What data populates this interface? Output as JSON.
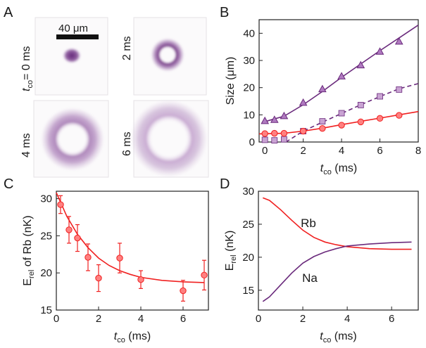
{
  "panel_letters": {
    "A": "A",
    "B": "B",
    "C": "C",
    "D": "D"
  },
  "images": {
    "scalebar_label": "40 μm",
    "label_0": "t",
    "label_0_sub": "co",
    "label_0_rest": "= 0 ms",
    "label_2": "2 ms",
    "label_4": "4 ms",
    "label_6": "6 ms"
  },
  "colors": {
    "red": "#f02020",
    "purple": "#6a2a7c",
    "purple_light": "#b27cbf",
    "red_fill": "#ff8080",
    "purple_fill": "#b07ac0"
  },
  "chart_data": [
    {
      "panel": "B",
      "type": "scatter",
      "xlabel": "t",
      "xlabel_sub": "co",
      "xlabel_unit": " (ms)",
      "ylabel": "Size (μm)",
      "xlim": [
        -0.3,
        8
      ],
      "ylim": [
        0,
        45
      ],
      "xticks": [
        "0",
        "2",
        "4",
        "6",
        "8"
      ],
      "xtick_values": [
        0,
        2,
        4,
        6,
        8
      ],
      "yticks": [
        "0",
        "10",
        "20",
        "30",
        "40"
      ],
      "ytick_values": [
        0,
        10,
        20,
        30,
        40
      ],
      "series": [
        {
          "marker": "triangle",
          "color": "#6a2a7c",
          "fill": "#b07ac0",
          "points": [
            [
              0,
              7.8
            ],
            [
              0.5,
              8.2
            ],
            [
              1,
              9.6
            ],
            [
              2,
              14.5
            ],
            [
              3,
              19.5
            ],
            [
              4,
              24.2
            ],
            [
              5,
              28.3
            ],
            [
              6,
              33.3
            ],
            [
              7,
              37
            ]
          ],
          "fit": [
            [
              0,
              7.5
            ],
            [
              1,
              9.5
            ],
            [
              2,
              13.7
            ],
            [
              3,
              18.6
            ],
            [
              4,
              23.8
            ],
            [
              5,
              28.7
            ],
            [
              6,
              33.6
            ],
            [
              7,
              38.3
            ],
            [
              8,
              43
            ]
          ],
          "dashed": false
        },
        {
          "marker": "square",
          "color": "#6a2a7c",
          "fill": "#c9a3d3",
          "points": [
            [
              0,
              0.8
            ],
            [
              0.5,
              0.6
            ],
            [
              1,
              1
            ],
            [
              2,
              4
            ],
            [
              3,
              7.6
            ],
            [
              4,
              10.6
            ],
            [
              5,
              13.6
            ],
            [
              6,
              16.8
            ],
            [
              7,
              19.3
            ]
          ],
          "fit": [
            [
              1.1,
              0
            ],
            [
              2,
              4
            ],
            [
              3,
              7.3
            ],
            [
              4,
              10.5
            ],
            [
              5,
              13.7
            ],
            [
              6,
              16.7
            ],
            [
              7,
              19.6
            ],
            [
              8,
              21.5
            ]
          ],
          "dashed": true
        },
        {
          "marker": "circle",
          "color": "#f02020",
          "fill": "#ff8080",
          "points": [
            [
              0,
              3.1
            ],
            [
              0.5,
              3.2
            ],
            [
              1,
              3.2
            ],
            [
              2,
              4
            ],
            [
              3,
              5
            ],
            [
              4,
              6.2
            ],
            [
              5,
              7.4
            ],
            [
              6,
              8.7
            ],
            [
              7,
              9.8
            ]
          ],
          "fit": [
            [
              -0.3,
              3
            ],
            [
              1,
              3.2
            ],
            [
              2,
              4
            ],
            [
              3,
              5.1
            ],
            [
              4,
              6.4
            ],
            [
              5,
              7.6
            ],
            [
              6,
              8.8
            ],
            [
              7,
              10
            ],
            [
              8,
              11.2
            ]
          ],
          "dashed": false
        }
      ]
    },
    {
      "panel": "C",
      "type": "scatter",
      "xlabel": "t",
      "xlabel_sub": "co",
      "xlabel_unit": " (ms)",
      "ylabel": "E",
      "ylabel_sub": "rel",
      "ylabel_rest": " of Rb (nK)",
      "xlim": [
        0,
        7.2
      ],
      "ylim": [
        15,
        31
      ],
      "xticks": [
        "0",
        "2",
        "4",
        "6"
      ],
      "xtick_values": [
        0,
        2,
        4,
        6
      ],
      "yticks": [
        "15",
        "20",
        "25",
        "30"
      ],
      "ytick_values": [
        15,
        20,
        25,
        30
      ],
      "series": [
        {
          "marker": "circle",
          "color": "#f02020",
          "fill": "#ff8080",
          "points": [
            [
              0.2,
              29.2
            ],
            [
              0.6,
              25.8
            ],
            [
              1,
              24.7
            ],
            [
              1.5,
              22.1
            ],
            [
              2,
              19.3
            ],
            [
              3,
              22
            ],
            [
              4,
              19.1
            ],
            [
              6,
              17.6
            ],
            [
              7,
              19.7
            ]
          ],
          "errors": [
            1.2,
            1.8,
            1.8,
            1.8,
            1.8,
            2,
            1.2,
            1.4,
            2
          ],
          "fit": [
            [
              0,
              30.8
            ],
            [
              0.5,
              27.6
            ],
            [
              1,
              25.2
            ],
            [
              1.5,
              23.4
            ],
            [
              2,
              22
            ],
            [
              2.5,
              21
            ],
            [
              3,
              20.3
            ],
            [
              3.5,
              19.8
            ],
            [
              4,
              19.4
            ],
            [
              5,
              19
            ],
            [
              6,
              18.8
            ],
            [
              7,
              18.7
            ]
          ]
        }
      ]
    },
    {
      "panel": "D",
      "type": "line",
      "xlabel": "t",
      "xlabel_sub": "co",
      "xlabel_unit": " (ms)",
      "ylabel": "E",
      "ylabel_sub": "rel",
      "ylabel_rest": " (nK)",
      "xlim": [
        0,
        7.2
      ],
      "ylim": [
        12,
        30
      ],
      "xticks": [
        "0",
        "2",
        "4",
        "6"
      ],
      "xtick_values": [
        0,
        2,
        4,
        6
      ],
      "yticks": [
        "15",
        "20",
        "25",
        "30"
      ],
      "ytick_values": [
        15,
        20,
        25,
        30
      ],
      "series": [
        {
          "name": "Rb",
          "color": "#f02020",
          "points": [
            [
              0.2,
              29
            ],
            [
              0.5,
              28.6
            ],
            [
              1,
              27.2
            ],
            [
              1.5,
              25.6
            ],
            [
              2,
              24.1
            ],
            [
              2.5,
              23
            ],
            [
              3,
              22.3
            ],
            [
              3.5,
              21.9
            ],
            [
              4,
              21.6
            ],
            [
              5,
              21.3
            ],
            [
              6,
              21.2
            ],
            [
              6.9,
              21.2
            ]
          ]
        },
        {
          "name": "Na",
          "color": "#6a2a7c",
          "points": [
            [
              0.2,
              13.3
            ],
            [
              0.5,
              14
            ],
            [
              1,
              15.8
            ],
            [
              1.5,
              17.6
            ],
            [
              2,
              19.1
            ],
            [
              2.5,
              20.1
            ],
            [
              3,
              20.8
            ],
            [
              3.5,
              21.3
            ],
            [
              4,
              21.7
            ],
            [
              5,
              22
            ],
            [
              6,
              22.2
            ],
            [
              6.9,
              22.3
            ]
          ]
        }
      ]
    }
  ]
}
